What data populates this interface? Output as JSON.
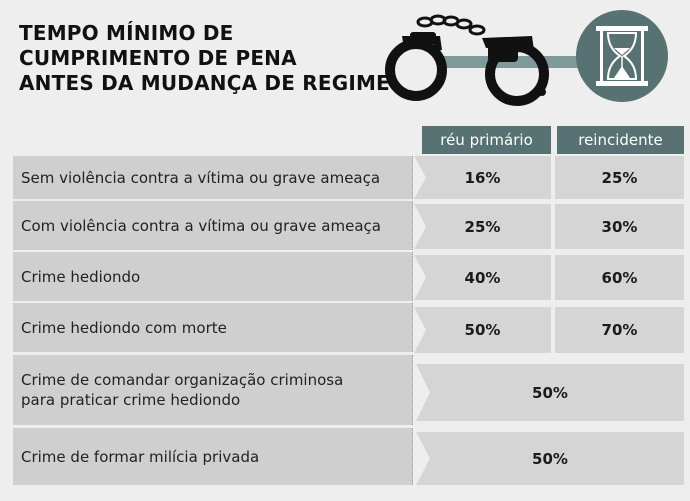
{
  "title": {
    "line1": "TEMPO MÍNIMO DE",
    "line2": "CUMPRIMENTO DE PENA",
    "line3": "ANTES DA MUDANÇA DE REGIME"
  },
  "icons": [
    "handcuffs-icon",
    "hourglass-icon"
  ],
  "colors": {
    "header": "#587172",
    "row": "#cfcfcf",
    "cell": "#d5d5d5",
    "background": "#eeeeee"
  },
  "columns": [
    "réu primário",
    "reincidente"
  ],
  "rows": [
    {
      "label_lines": [
        "Sem violência contra a vítima ou grave ameaça"
      ],
      "primario": "16%",
      "reincidente": "25%"
    },
    {
      "label_lines": [
        "Com violência contra a vítima ou grave ameaça"
      ],
      "primario": "25%",
      "reincidente": "30%"
    },
    {
      "label_lines": [
        "Crime hediondo"
      ],
      "primario": "40%",
      "reincidente": "60%"
    },
    {
      "label_lines": [
        "Crime hediondo com morte"
      ],
      "primario": "50%",
      "reincidente": "70%"
    },
    {
      "label_lines": [
        "Crime de comandar organização criminosa",
        "para praticar crime hediondo"
      ],
      "both": "50%"
    },
    {
      "label_lines": [
        "Crime de formar milícia privada"
      ],
      "both": "50%"
    }
  ]
}
